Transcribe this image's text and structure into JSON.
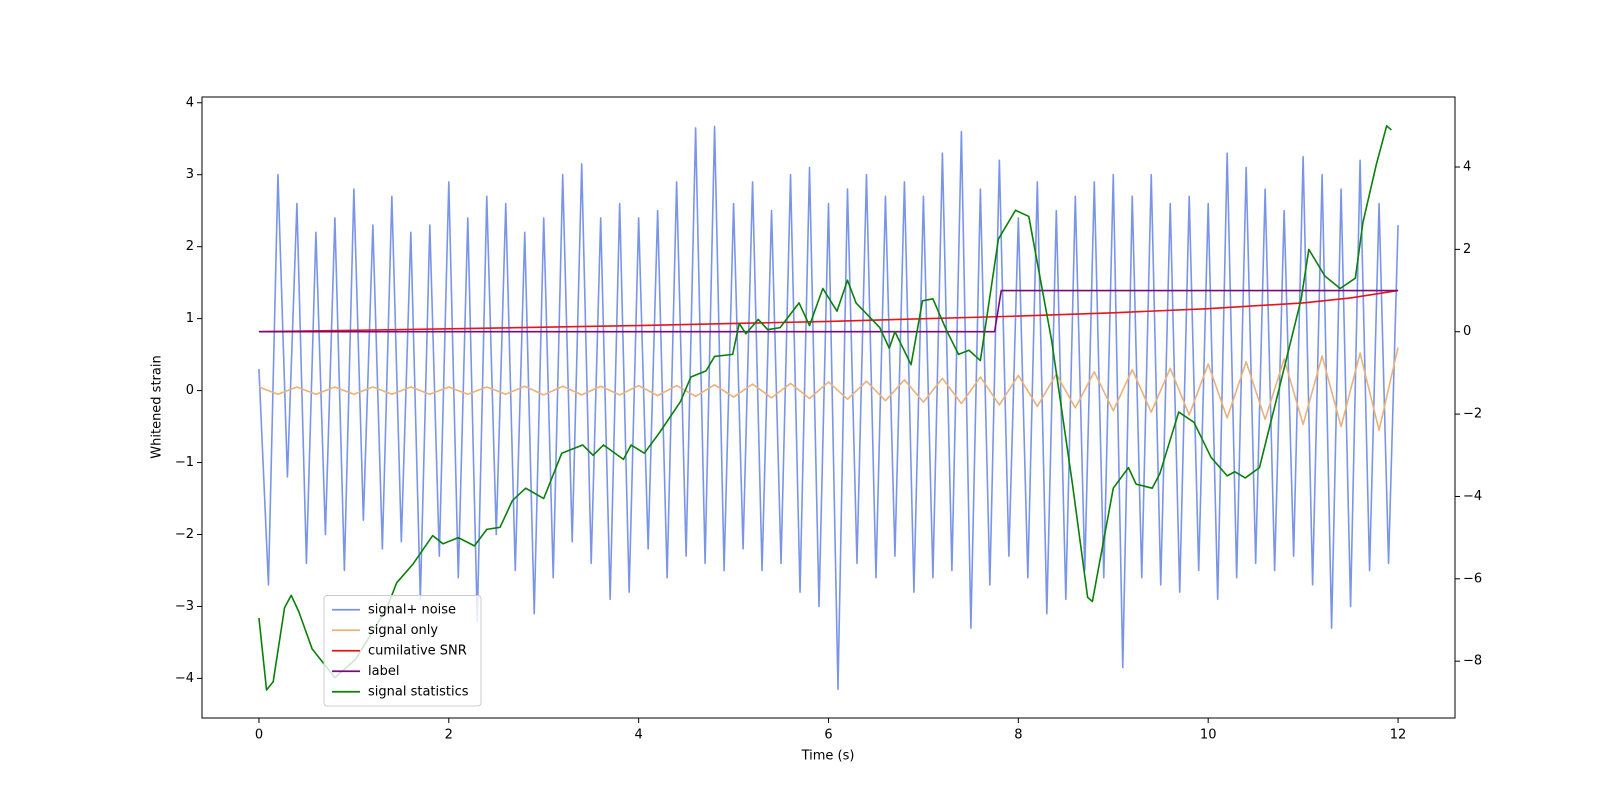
{
  "chart_data": {
    "type": "line",
    "xlabel": "Time (s)",
    "ylabel": "Whitened strain",
    "xlim": [
      -0.6,
      12.6
    ],
    "ylim": [
      -4.55,
      4.08
    ],
    "y2lim": [
      -9.38,
      5.7
    ],
    "xticks": [
      0,
      2,
      4,
      6,
      8,
      10,
      12
    ],
    "yticks": [
      {
        "value": -4,
        "label": "−4"
      },
      {
        "value": -3,
        "label": "−3"
      },
      {
        "value": -2,
        "label": "−2"
      },
      {
        "value": -1,
        "label": "−1"
      },
      0,
      1,
      2,
      3,
      4
    ],
    "y2ticks": [
      {
        "value": -8,
        "label": "−8"
      },
      {
        "value": -6,
        "label": "−6"
      },
      {
        "value": -4,
        "label": "−4"
      },
      {
        "value": -2,
        "label": "−2"
      },
      0,
      2,
      4
    ],
    "legend": "lower left",
    "series": [
      {
        "name": "signal+ noise",
        "color": "#7a95e8",
        "axis": "y",
        "x": [
          0,
          0.1,
          0.2,
          0.3,
          0.4,
          0.5,
          0.6,
          0.7,
          0.8,
          0.9,
          1,
          1.1,
          1.2,
          1.3,
          1.4,
          1.5,
          1.6,
          1.7,
          1.8,
          1.9,
          2,
          2.1,
          2.2,
          2.3,
          2.4,
          2.5,
          2.6,
          2.7,
          2.8,
          2.9,
          3,
          3.1,
          3.2,
          3.3,
          3.4,
          3.5,
          3.6,
          3.7,
          3.8,
          3.9,
          4,
          4.1,
          4.2,
          4.3,
          4.4,
          4.5,
          4.6,
          4.7,
          4.8,
          4.9,
          5,
          5.1,
          5.2,
          5.3,
          5.4,
          5.5,
          5.6,
          5.7,
          5.8,
          5.9,
          6,
          6.1,
          6.2,
          6.3,
          6.4,
          6.5,
          6.6,
          6.7,
          6.8,
          6.9,
          7,
          7.1,
          7.2,
          7.3,
          7.4,
          7.5,
          7.6,
          7.7,
          7.8,
          7.9,
          8,
          8.1,
          8.2,
          8.3,
          8.4,
          8.5,
          8.6,
          8.7,
          8.8,
          8.9,
          9,
          9.1,
          9.2,
          9.3,
          9.4,
          9.5,
          9.6,
          9.7,
          9.8,
          9.9,
          10,
          10.1,
          10.2,
          10.3,
          10.4,
          10.5,
          10.6,
          10.7,
          10.8,
          10.9,
          11,
          11.1,
          11.2,
          11.3,
          11.4,
          11.5,
          11.6,
          11.7,
          11.8,
          11.9,
          12
        ],
        "values": [
          0.3,
          -2.7,
          3.0,
          -1.2,
          2.6,
          -2.4,
          2.2,
          -2.0,
          2.4,
          -2.5,
          2.8,
          -1.8,
          2.3,
          -2.2,
          2.7,
          -2.1,
          2.2,
          -2.9,
          2.3,
          -2.3,
          2.9,
          -2.6,
          2.4,
          -3.2,
          2.7,
          -2.0,
          2.6,
          -2.5,
          2.2,
          -3.1,
          2.4,
          -2.6,
          3.0,
          -2.1,
          3.15,
          -2.4,
          2.4,
          -2.9,
          2.6,
          -2.8,
          2.4,
          -2.2,
          2.5,
          -2.6,
          2.9,
          -2.3,
          3.65,
          -2.4,
          3.67,
          -2.5,
          2.6,
          -2.2,
          2.9,
          -2.5,
          2.5,
          -2.4,
          3.0,
          -2.8,
          3.1,
          -3.0,
          2.6,
          -4.15,
          2.8,
          -2.4,
          3.0,
          -2.6,
          2.7,
          -2.3,
          2.9,
          -2.8,
          2.7,
          -2.6,
          3.3,
          -2.5,
          3.6,
          -3.3,
          2.8,
          -2.7,
          3.2,
          -2.3,
          2.4,
          -2.6,
          2.9,
          -3.1,
          2.5,
          -2.9,
          2.7,
          -2.5,
          2.9,
          -2.6,
          3.0,
          -3.85,
          2.7,
          -2.6,
          3.0,
          -2.7,
          2.6,
          -2.8,
          2.7,
          -2.5,
          2.6,
          -2.9,
          3.3,
          -2.6,
          3.1,
          -2.4,
          2.8,
          -2.5,
          2.5,
          -2.3,
          3.25,
          -2.7,
          3.0,
          -3.3,
          2.8,
          -3.0,
          3.2,
          -2.5,
          2.6,
          -2.4,
          2.3
        ]
      },
      {
        "name": "signal only",
        "color": "#e9b27a",
        "axis": "y",
        "x": [
          0,
          0.2,
          0.4,
          0.6,
          0.8,
          1,
          1.2,
          1.4,
          1.6,
          1.8,
          2,
          2.2,
          2.4,
          2.6,
          2.8,
          3,
          3.2,
          3.4,
          3.6,
          3.8,
          4,
          4.2,
          4.4,
          4.6,
          4.8,
          5,
          5.2,
          5.4,
          5.6,
          5.8,
          6,
          6.2,
          6.4,
          6.6,
          6.8,
          7,
          7.2,
          7.4,
          7.6,
          7.8,
          8,
          8.2,
          8.4,
          8.6,
          8.8,
          9,
          9.2,
          9.4,
          9.6,
          9.8,
          10,
          10.2,
          10.4,
          10.6,
          10.8,
          11,
          11.2,
          11.4,
          11.6,
          11.8,
          12
        ],
        "values": [
          0.05,
          -0.05,
          0.05,
          -0.05,
          0.05,
          -0.05,
          0.05,
          -0.05,
          0.05,
          -0.05,
          0.05,
          -0.05,
          0.05,
          -0.05,
          0.06,
          -0.06,
          0.06,
          -0.06,
          0.06,
          -0.06,
          0.07,
          -0.07,
          0.07,
          -0.08,
          0.08,
          -0.09,
          0.09,
          -0.1,
          0.1,
          -0.11,
          0.12,
          -0.12,
          0.13,
          -0.14,
          0.15,
          -0.16,
          0.17,
          -0.18,
          0.19,
          -0.2,
          0.21,
          -0.22,
          0.23,
          -0.24,
          0.26,
          -0.28,
          0.29,
          -0.3,
          0.31,
          -0.34,
          0.37,
          -0.38,
          0.4,
          -0.4,
          0.44,
          -0.47,
          0.48,
          -0.5,
          0.52,
          -0.55,
          0.6
        ]
      },
      {
        "name": "cumilative SNR",
        "color": "#e8141c",
        "axis": "y2",
        "x": [
          0,
          2,
          4,
          6,
          8,
          9,
          10,
          11,
          11.5,
          12
        ],
        "values": [
          0,
          0.07,
          0.15,
          0.25,
          0.38,
          0.46,
          0.56,
          0.7,
          0.82,
          1.0
        ]
      },
      {
        "name": "label",
        "color": "#7a0a7a",
        "axis": "y2",
        "x": [
          0,
          7.75,
          7.82,
          12
        ],
        "values": [
          0,
          0,
          1,
          1
        ]
      },
      {
        "name": "signal statistics",
        "color": "#0a800a",
        "axis": "y2",
        "x": [
          0,
          0.08,
          0.15,
          0.27,
          0.34,
          0.42,
          0.56,
          0.8,
          1.02,
          1.35,
          1.45,
          1.62,
          1.83,
          1.94,
          2.1,
          2.27,
          2.4,
          2.54,
          2.67,
          2.81,
          3.0,
          3.19,
          3.41,
          3.52,
          3.63,
          3.84,
          3.92,
          4.06,
          4.22,
          4.44,
          4.55,
          4.71,
          4.8,
          4.99,
          5.06,
          5.13,
          5.26,
          5.36,
          5.49,
          5.69,
          5.8,
          5.94,
          6.09,
          6.2,
          6.29,
          6.54,
          6.64,
          6.7,
          6.87,
          6.99,
          7.1,
          7.24,
          7.37,
          7.48,
          7.6,
          7.79,
          7.97,
          8.11,
          8.35,
          8.57,
          8.73,
          8.78,
          9.0,
          9.16,
          9.24,
          9.41,
          9.49,
          9.69,
          9.85,
          10.03,
          10.2,
          10.28,
          10.39,
          10.54,
          10.74,
          10.98,
          11.06,
          11.23,
          11.39,
          11.55,
          11.63,
          11.77,
          11.88,
          11.93
        ],
        "values": [
          -6.95,
          -8.7,
          -8.5,
          -6.7,
          -6.4,
          -6.8,
          -7.7,
          -8.4,
          -7.95,
          -6.7,
          -6.1,
          -5.65,
          -4.95,
          -5.15,
          -5.0,
          -5.2,
          -4.8,
          -4.75,
          -4.1,
          -3.8,
          -4.05,
          -2.95,
          -2.75,
          -3.0,
          -2.75,
          -3.1,
          -2.75,
          -2.95,
          -2.45,
          -1.7,
          -1.1,
          -0.95,
          -0.6,
          -0.55,
          0.2,
          -0.05,
          0.3,
          0.05,
          0.1,
          0.7,
          0.15,
          1.05,
          0.5,
          1.25,
          0.7,
          0.1,
          -0.4,
          0.0,
          -0.8,
          0.75,
          0.8,
          0.05,
          -0.55,
          -0.45,
          -0.7,
          2.25,
          2.95,
          2.8,
          -0.2,
          -3.7,
          -6.45,
          -6.55,
          -3.8,
          -3.3,
          -3.7,
          -3.8,
          -3.45,
          -1.95,
          -2.2,
          -3.05,
          -3.5,
          -3.4,
          -3.55,
          -3.3,
          -1.45,
          0.8,
          2.0,
          1.35,
          1.05,
          1.3,
          2.65,
          4.05,
          5.0,
          4.9
        ]
      }
    ]
  }
}
